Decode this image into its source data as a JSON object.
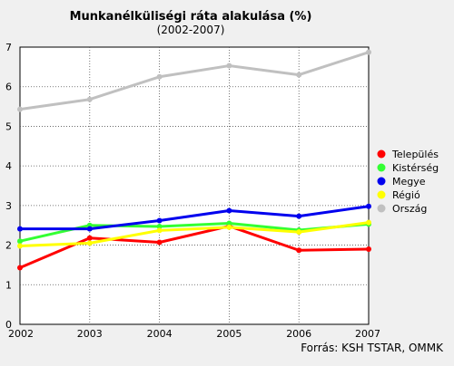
{
  "chart_data": {
    "type": "line",
    "title": "Munkanélküliségi ráta alakulása (%)",
    "subtitle": "(2002-2007)",
    "source": "Forrás: KSH TSTAR, OMMK",
    "x": [
      2002,
      2003,
      2004,
      2005,
      2006,
      2007
    ],
    "xlim": [
      2002,
      2007
    ],
    "ylim": [
      0,
      7
    ],
    "yticks": [
      0,
      1,
      2,
      3,
      4,
      5,
      6,
      7
    ],
    "grid": true,
    "legend_position": "right",
    "series": [
      {
        "name": "Település",
        "color": "#ff0000",
        "values": [
          1.43,
          2.18,
          2.07,
          2.48,
          1.87,
          1.9
        ]
      },
      {
        "name": "Kistérség",
        "color": "#33ff33",
        "values": [
          2.1,
          2.5,
          2.47,
          2.55,
          2.38,
          2.53
        ]
      },
      {
        "name": "Megye",
        "color": "#0000ee",
        "values": [
          2.41,
          2.41,
          2.62,
          2.87,
          2.73,
          2.98
        ]
      },
      {
        "name": "Régió",
        "color": "#ffff00",
        "values": [
          1.98,
          2.05,
          2.37,
          2.45,
          2.33,
          2.57
        ]
      },
      {
        "name": "Ország",
        "color": "#c0c0c0",
        "values": [
          5.43,
          5.68,
          6.25,
          6.53,
          6.3,
          6.87
        ]
      }
    ]
  }
}
